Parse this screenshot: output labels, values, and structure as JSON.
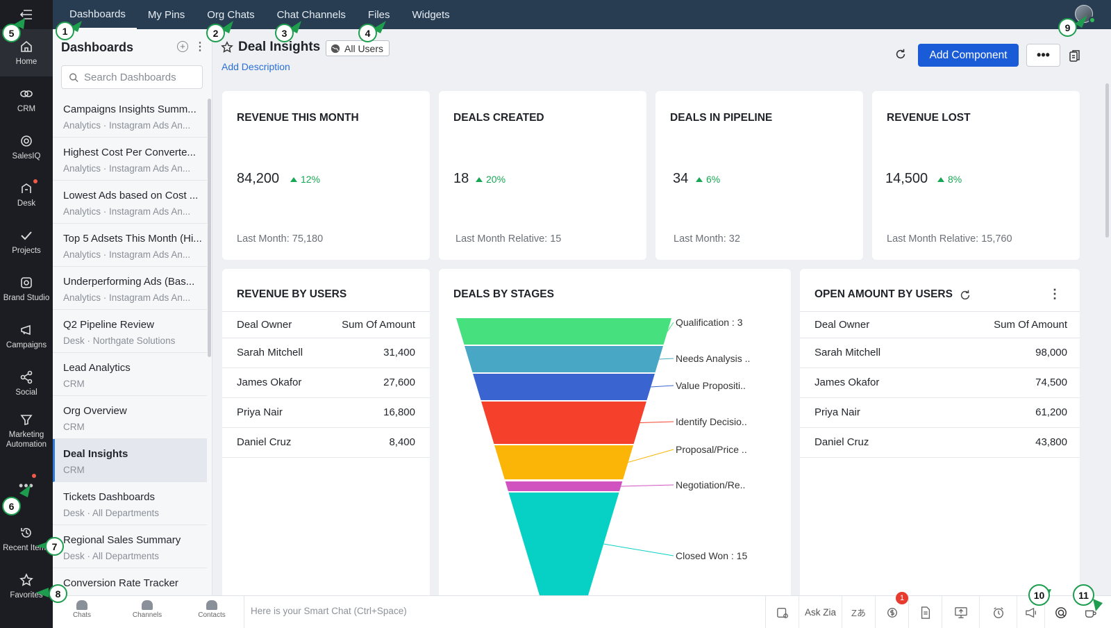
{
  "top_tabs": [
    "Dashboards",
    "My Pins",
    "Org Chats",
    "Chat Channels",
    "Files",
    "Widgets"
  ],
  "rail": {
    "items": [
      {
        "label": "Home",
        "icon": "home-icon"
      },
      {
        "label": "CRM",
        "icon": "crm-icon"
      },
      {
        "label": "SalesIQ",
        "icon": "salesiq-icon"
      },
      {
        "label": "Desk",
        "icon": "desk-icon"
      },
      {
        "label": "Projects",
        "icon": "projects-icon"
      },
      {
        "label": "Brand Studio",
        "icon": "brand-studio-icon"
      },
      {
        "label": "Campaigns",
        "icon": "campaigns-icon"
      },
      {
        "label": "Social",
        "icon": "social-icon"
      },
      {
        "label": "Marketing Automation",
        "icon": "marketing-automation-icon"
      }
    ],
    "recent_label": "Recent Items",
    "favorites_label": "Favorites"
  },
  "dash_panel": {
    "title": "Dashboards",
    "search_placeholder": "Search Dashboards",
    "items": [
      {
        "name": "Campaigns Insights Summ...",
        "sub": "Analytics  ·  Instagram Ads An..."
      },
      {
        "name": "Highest Cost Per Converte...",
        "sub": "Analytics  ·  Instagram Ads An..."
      },
      {
        "name": "Lowest Ads based on Cost ...",
        "sub": "Analytics  ·  Instagram Ads An..."
      },
      {
        "name": "Top 5 Adsets This Month (Hi...",
        "sub": "Analytics  ·  Instagram Ads An..."
      },
      {
        "name": "Underperforming Ads (Bas...",
        "sub": "Analytics  ·  Instagram Ads An..."
      },
      {
        "name": "Q2 Pipeline Review",
        "sub": "Desk  ·  Northgate Solutions"
      },
      {
        "name": "Lead Analytics",
        "sub": "CRM"
      },
      {
        "name": "Org Overview",
        "sub": "CRM"
      },
      {
        "name": "Deal Insights",
        "sub": "CRM"
      },
      {
        "name": "Tickets Dashboards",
        "sub": "Desk  ·  All Departments"
      },
      {
        "name": "Regional Sales Summary",
        "sub": "Desk  ·  All Departments"
      },
      {
        "name": "Conversion Rate Tracker",
        "sub": ""
      }
    ]
  },
  "header": {
    "title": "Deal Insights",
    "scope": "All Users",
    "add_description": "Add Description",
    "add_component": "Add Component",
    "more": "•••"
  },
  "kpis": [
    {
      "title": "REVENUE THIS MONTH",
      "value": "84,200",
      "change": "12%",
      "foot": "Last Month: 75,180"
    },
    {
      "title": "DEALS CREATED",
      "value": "18",
      "change": "20%",
      "foot": "Last Month Relative: 15"
    },
    {
      "title": "DEALS IN PIPELINE",
      "value": "34",
      "change": "6%",
      "foot": "Last Month: 32"
    },
    {
      "title": "REVENUE LOST",
      "value": "14,500",
      "change": "8%",
      "foot": "Last Month Relative: 15,760"
    }
  ],
  "revenue_by_users": {
    "title": "REVENUE BY USERS",
    "headers": [
      "Deal Owner",
      "Sum Of Amount"
    ],
    "rows": [
      [
        "Sarah Mitchell",
        "31,400"
      ],
      [
        "James Okafor",
        "27,600"
      ],
      [
        "Priya Nair",
        "16,800"
      ],
      [
        "Daniel Cruz",
        "8,400"
      ]
    ]
  },
  "open_amount_by_users": {
    "title": "OPEN AMOUNT BY USERS",
    "headers": [
      "Deal Owner",
      "Sum Of Amount"
    ],
    "rows": [
      [
        "Sarah Mitchell",
        "98,000"
      ],
      [
        "James Okafor",
        "74,500"
      ],
      [
        "Priya Nair",
        "61,200"
      ],
      [
        "Daniel Cruz",
        "43,800"
      ]
    ]
  },
  "funnel": {
    "title": "DEALS BY STAGES",
    "stages": [
      {
        "label": "Qualification : 3",
        "color": "#47e07e"
      },
      {
        "label": "Needs Analysis ..",
        "color": "#48a7c4"
      },
      {
        "label": "Value Propositi..",
        "color": "#3a64cf"
      },
      {
        "label": "Identify Decisio..",
        "color": "#f5402c"
      },
      {
        "label": "Proposal/Price ..",
        "color": "#fbb507"
      },
      {
        "label": "Negotiation/Re..",
        "color": "#d153bf"
      },
      {
        "label": "Closed Won : 15",
        "color": "#06d1c4"
      }
    ]
  },
  "bottom_bar": {
    "chats": "Chats",
    "channels": "Channels",
    "contacts": "Contacts",
    "smart_chat": "Here is your Smart Chat (Ctrl+Space)",
    "ask_zia": "Ask Zia",
    "notif_count": "1"
  },
  "callouts": [
    "1",
    "2",
    "3",
    "4",
    "5",
    "6",
    "7",
    "8",
    "9",
    "10",
    "11"
  ],
  "colors": {
    "accent": "#1a5bd8",
    "topbar": "#283d52",
    "rail": "#1b1d22",
    "positive": "#17a653",
    "callout_border": "#1f9d4f"
  }
}
